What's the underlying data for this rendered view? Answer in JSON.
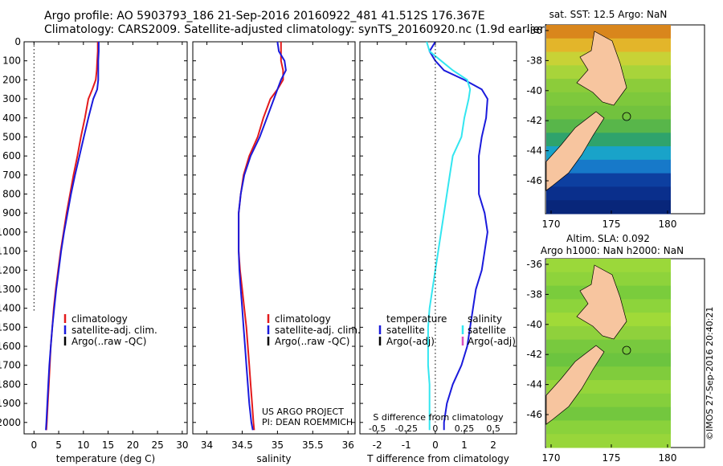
{
  "header": {
    "line1": "Argo profile: AO 5903793_186 21-Sep-2016 20160922_481 41.512S 176.367E",
    "line2": "Climatology: CARS2009. Satellite-adjusted climatology: synTS_20160920.nc (1.9d earlier)"
  },
  "imos_stamp": "©IMOS 27-Sep-2016 20:40:21",
  "colors": {
    "climatology": "#e31a1c",
    "satellite": "#1a1adc",
    "argo": "#000000",
    "satellite_S": "#33e6f0",
    "argo_S_adj": "#d64fbf"
  },
  "chart_data": [
    {
      "type": "line",
      "id": "temperature",
      "xlabel": "temperature (deg C)",
      "xlim": [
        -2,
        31
      ],
      "xticks": [
        0,
        5,
        10,
        15,
        20,
        25,
        30
      ],
      "ylim": [
        0,
        2060
      ],
      "yticks": [
        0,
        100,
        200,
        300,
        400,
        500,
        600,
        700,
        800,
        900,
        1000,
        1100,
        1200,
        1300,
        1400,
        1500,
        1600,
        1700,
        1800,
        1900,
        2000
      ],
      "yreverse": true,
      "legend": [
        "climatology",
        "satellite-adj. clim.",
        "Argo(..raw -QC)"
      ],
      "series": [
        {
          "name": "climatology",
          "color": "#e31a1c",
          "points": [
            [
              12.9,
              0
            ],
            [
              12.9,
              50
            ],
            [
              12.8,
              100
            ],
            [
              12.7,
              150
            ],
            [
              12.5,
              200
            ],
            [
              11.8,
              250
            ],
            [
              11.0,
              300
            ],
            [
              10.3,
              400
            ],
            [
              9.5,
              500
            ],
            [
              8.8,
              600
            ],
            [
              8.0,
              700
            ],
            [
              7.3,
              800
            ],
            [
              6.6,
              900
            ],
            [
              6.0,
              1000
            ],
            [
              5.4,
              1100
            ],
            [
              4.9,
              1200
            ],
            [
              4.4,
              1300
            ],
            [
              4.0,
              1400
            ],
            [
              3.7,
              1500
            ],
            [
              3.4,
              1600
            ],
            [
              3.2,
              1700
            ],
            [
              3.0,
              1800
            ],
            [
              2.8,
              1900
            ],
            [
              2.6,
              2000
            ],
            [
              2.5,
              2040
            ]
          ]
        },
        {
          "name": "satellite-adj. clim.",
          "color": "#1a1adc",
          "points": [
            [
              13.1,
              0
            ],
            [
              13.1,
              50
            ],
            [
              13.0,
              100
            ],
            [
              13.0,
              150
            ],
            [
              13.0,
              200
            ],
            [
              12.8,
              250
            ],
            [
              12.0,
              300
            ],
            [
              11.0,
              400
            ],
            [
              10.1,
              500
            ],
            [
              9.2,
              600
            ],
            [
              8.3,
              700
            ],
            [
              7.5,
              800
            ],
            [
              6.8,
              900
            ],
            [
              6.1,
              1000
            ],
            [
              5.5,
              1100
            ],
            [
              5.0,
              1200
            ],
            [
              4.5,
              1300
            ],
            [
              4.1,
              1400
            ],
            [
              3.7,
              1500
            ],
            [
              3.4,
              1600
            ],
            [
              3.1,
              1700
            ],
            [
              2.9,
              1800
            ],
            [
              2.7,
              1900
            ],
            [
              2.5,
              2000
            ],
            [
              2.4,
              2040
            ]
          ]
        },
        {
          "name": "Argo(..raw -QC)",
          "color": "#000000",
          "style": "dotted",
          "points": [
            [
              0,
              0
            ],
            [
              0,
              1420
            ]
          ]
        }
      ]
    },
    {
      "type": "line",
      "id": "salinity",
      "xlabel": "salinity",
      "xlim": [
        33.8,
        36.1
      ],
      "xticks": [
        34,
        34.5,
        35,
        35.5,
        36
      ],
      "ylim": [
        0,
        2060
      ],
      "yreverse": true,
      "legend": [
        "climatology",
        "satellite-adj. clim.",
        "Argo(..raw -QC)"
      ],
      "annotation": [
        "US ARGO PROJECT",
        "PI: DEAN ROEMMICH"
      ],
      "series": [
        {
          "name": "climatology",
          "color": "#e31a1c",
          "points": [
            [
              35.05,
              0
            ],
            [
              35.05,
              50
            ],
            [
              35.05,
              100
            ],
            [
              35.08,
              150
            ],
            [
              35.08,
              200
            ],
            [
              35.0,
              250
            ],
            [
              34.9,
              300
            ],
            [
              34.8,
              400
            ],
            [
              34.72,
              500
            ],
            [
              34.6,
              600
            ],
            [
              34.52,
              700
            ],
            [
              34.48,
              800
            ],
            [
              34.45,
              900
            ],
            [
              34.45,
              1000
            ],
            [
              34.45,
              1100
            ],
            [
              34.47,
              1200
            ],
            [
              34.5,
              1300
            ],
            [
              34.53,
              1400
            ],
            [
              34.56,
              1500
            ],
            [
              34.58,
              1600
            ],
            [
              34.6,
              1700
            ],
            [
              34.62,
              1800
            ],
            [
              34.64,
              1900
            ],
            [
              34.66,
              2000
            ],
            [
              34.67,
              2040
            ]
          ]
        },
        {
          "name": "satellite-adj. clim.",
          "color": "#1a1adc",
          "points": [
            [
              35.0,
              0
            ],
            [
              35.02,
              50
            ],
            [
              35.1,
              100
            ],
            [
              35.12,
              150
            ],
            [
              35.05,
              200
            ],
            [
              35.0,
              250
            ],
            [
              34.95,
              300
            ],
            [
              34.85,
              400
            ],
            [
              34.75,
              500
            ],
            [
              34.62,
              600
            ],
            [
              34.53,
              700
            ],
            [
              34.48,
              800
            ],
            [
              34.45,
              900
            ],
            [
              34.45,
              1000
            ],
            [
              34.45,
              1100
            ],
            [
              34.46,
              1200
            ],
            [
              34.48,
              1300
            ],
            [
              34.5,
              1400
            ],
            [
              34.52,
              1500
            ],
            [
              34.54,
              1600
            ],
            [
              34.56,
              1700
            ],
            [
              34.58,
              1800
            ],
            [
              34.6,
              1900
            ],
            [
              34.63,
              2000
            ],
            [
              34.65,
              2040
            ]
          ]
        }
      ]
    },
    {
      "type": "line",
      "id": "difference",
      "xlabel": "T difference from climatology",
      "xlabel_top": "S difference from climatology",
      "xlim": [
        -2.6,
        2.8
      ],
      "xticks": [
        -2,
        -1,
        0,
        1,
        2
      ],
      "xticks_S_labels": [
        "-0.5",
        "-0.25",
        "0",
        "0.25",
        "0.5"
      ],
      "ylim": [
        0,
        2060
      ],
      "yreverse": true,
      "legend_T": {
        "title": "temperature",
        "items": [
          "satellite",
          "Argo(-adj)"
        ]
      },
      "legend_S": {
        "title": "salinity",
        "items": [
          "satellite",
          "Argo(-adj)"
        ]
      },
      "series": [
        {
          "name": "satellite (temperature)",
          "color": "#1a1adc",
          "points": [
            [
              0.0,
              0
            ],
            [
              -0.2,
              50
            ],
            [
              0.0,
              100
            ],
            [
              0.3,
              150
            ],
            [
              1.0,
              200
            ],
            [
              1.6,
              250
            ],
            [
              1.8,
              300
            ],
            [
              1.75,
              400
            ],
            [
              1.6,
              500
            ],
            [
              1.5,
              600
            ],
            [
              1.5,
              700
            ],
            [
              1.5,
              800
            ],
            [
              1.7,
              900
            ],
            [
              1.8,
              1000
            ],
            [
              1.7,
              1100
            ],
            [
              1.6,
              1200
            ],
            [
              1.4,
              1300
            ],
            [
              1.3,
              1400
            ],
            [
              1.2,
              1500
            ],
            [
              1.1,
              1600
            ],
            [
              0.9,
              1700
            ],
            [
              0.6,
              1800
            ],
            [
              0.4,
              1900
            ],
            [
              0.3,
              2000
            ],
            [
              0.3,
              2040
            ]
          ]
        },
        {
          "name": "satellite (salinity)",
          "color": "#33e6f0",
          "points": [
            [
              -0.3,
              0
            ],
            [
              -0.2,
              50
            ],
            [
              0.2,
              100
            ],
            [
              0.6,
              150
            ],
            [
              1.1,
              200
            ],
            [
              1.2,
              250
            ],
            [
              1.15,
              300
            ],
            [
              1.0,
              400
            ],
            [
              0.9,
              500
            ],
            [
              0.6,
              600
            ],
            [
              0.5,
              700
            ],
            [
              0.4,
              800
            ],
            [
              0.3,
              900
            ],
            [
              0.2,
              1000
            ],
            [
              0.1,
              1100
            ],
            [
              0.0,
              1200
            ],
            [
              -0.1,
              1300
            ],
            [
              -0.2,
              1400
            ],
            [
              -0.25,
              1500
            ],
            [
              -0.25,
              1600
            ],
            [
              -0.25,
              1700
            ],
            [
              -0.2,
              1800
            ],
            [
              -0.2,
              1900
            ],
            [
              -0.2,
              2000
            ],
            [
              -0.2,
              2040
            ]
          ]
        },
        {
          "name": "zero",
          "color": "#000000",
          "style": "dotted",
          "points": [
            [
              0,
              0
            ],
            [
              0,
              2000
            ]
          ]
        }
      ]
    }
  ],
  "maps": [
    {
      "id": "sst",
      "title": "sat. SST: 12.5 Argo: NaN",
      "xticks": [
        "170",
        "175",
        "180"
      ],
      "yticks": [
        "-36",
        "-38",
        "-40",
        "-42",
        "-44",
        "-46"
      ]
    },
    {
      "id": "sla",
      "title_line1": "Altim. SLA: 0.092",
      "title_line2": "Argo h1000: NaN h2000: NaN",
      "xticks": [
        "170",
        "175",
        "180"
      ],
      "yticks": [
        "-36",
        "-38",
        "-40",
        "-42",
        "-44",
        "-46"
      ]
    }
  ]
}
